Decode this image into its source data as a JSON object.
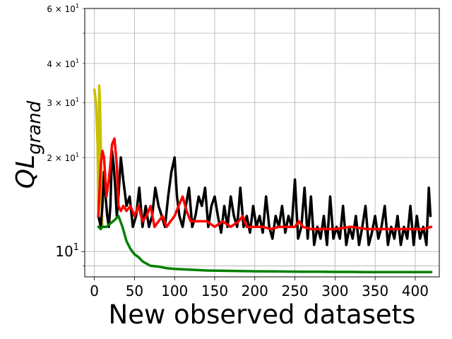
{
  "chart_data": {
    "type": "line",
    "xlabel": "New observed datasets",
    "ylabel": "QL",
    "ylabel_subscript": "grand",
    "y_scale": "log",
    "xlim": [
      -12,
      430
    ],
    "ylim": [
      8.3,
      60
    ],
    "grid": true,
    "x_ticks": [
      0,
      50,
      100,
      150,
      200,
      250,
      300,
      350,
      400
    ],
    "x_tick_labels": [
      "0",
      "50",
      "100",
      "150",
      "200",
      "250",
      "300",
      "350",
      "400"
    ],
    "y_ticks_major": [
      10
    ],
    "y_tick_major_labels": [
      "10",
      "1"
    ],
    "y_ticks_minor": [
      20,
      30,
      40,
      60
    ],
    "y_tick_minor_labels": [
      {
        "mantissa": "2",
        "base": "10",
        "exp": "1"
      },
      {
        "mantissa": "3",
        "base": "10",
        "exp": "1"
      },
      {
        "mantissa": "4",
        "base": "10",
        "exp": "1"
      },
      {
        "mantissa": "6",
        "base": "10",
        "exp": "1"
      }
    ],
    "series": [
      {
        "color": "#c8c000",
        "x": [
          0,
          2,
          4,
          5,
          6,
          7,
          8,
          9,
          10
        ],
        "y": [
          33,
          30,
          22,
          13,
          34,
          30,
          22,
          14,
          12
        ]
      },
      {
        "color": "#000000",
        "x": [
          5,
          8,
          10,
          12,
          14,
          16,
          18,
          20,
          22,
          24,
          26,
          28,
          30,
          33,
          36,
          40,
          44,
          48,
          52,
          56,
          60,
          64,
          68,
          72,
          76,
          80,
          84,
          88,
          92,
          96,
          100,
          103,
          106,
          110,
          114,
          118,
          122,
          126,
          130,
          134,
          138,
          142,
          146,
          150,
          154,
          158,
          162,
          166,
          170,
          174,
          178,
          182,
          186,
          190,
          194,
          198,
          202,
          206,
          210,
          214,
          218,
          222,
          226,
          230,
          234,
          238,
          242,
          246,
          250,
          254,
          258,
          262,
          266,
          270,
          274,
          278,
          282,
          286,
          290,
          294,
          298,
          302,
          306,
          310,
          314,
          318,
          322,
          326,
          330,
          334,
          338,
          342,
          346,
          350,
          354,
          358,
          362,
          366,
          370,
          374,
          378,
          382,
          386,
          390,
          394,
          398,
          402,
          406,
          410,
          414,
          417,
          419
        ],
        "y": [
          13,
          12,
          14,
          18,
          15,
          13,
          12,
          14,
          21,
          19,
          16,
          13,
          15,
          20,
          17,
          14,
          15,
          12,
          13,
          16,
          12,
          14,
          12,
          13,
          16,
          14,
          13,
          12,
          15,
          18,
          20,
          15,
          13,
          12,
          14,
          16,
          12,
          13,
          15,
          14,
          16,
          12,
          14,
          15,
          13,
          11.5,
          14,
          12,
          15,
          13,
          12,
          16,
          12,
          13,
          11.5,
          14,
          12,
          13,
          11.5,
          15,
          12,
          11,
          13,
          12,
          14,
          11.5,
          13,
          12,
          17,
          11,
          12,
          16,
          11,
          15,
          10.5,
          12,
          11,
          13,
          10.5,
          15,
          11,
          12,
          11,
          14,
          10.5,
          12,
          11,
          13,
          10.5,
          12,
          14,
          10.5,
          11.5,
          13,
          11,
          12,
          14,
          10.5,
          12,
          11,
          13,
          10.5,
          12,
          11,
          14,
          10.5,
          13,
          11,
          12,
          10.5,
          16,
          13
        ]
      },
      {
        "color": "#ff0000",
        "x": [
          5,
          8,
          10,
          12,
          15,
          18,
          20,
          22,
          25,
          28,
          30,
          33,
          36,
          40,
          45,
          50,
          55,
          60,
          65,
          70,
          75,
          80,
          85,
          90,
          95,
          100,
          105,
          110,
          115,
          120,
          130,
          140,
          150,
          160,
          170,
          180,
          185,
          190,
          200,
          210,
          220,
          230,
          240,
          250,
          255,
          260,
          270,
          280,
          290,
          300,
          320,
          340,
          360,
          380,
          400,
          410,
          420
        ],
        "y": [
          13,
          19,
          21,
          20,
          15,
          17,
          19,
          22,
          23,
          19,
          14,
          13.5,
          14,
          13.5,
          14,
          13,
          14,
          12.5,
          13,
          14,
          12,
          12.5,
          13,
          12,
          12.5,
          13,
          14,
          15,
          13.5,
          12.5,
          12.5,
          12.5,
          12,
          12.5,
          12,
          12.5,
          13,
          12,
          12,
          12,
          11.8,
          12,
          12,
          12,
          12.5,
          12,
          11.8,
          11.8,
          11.8,
          11.8,
          12,
          11.8,
          11.8,
          11.8,
          11.8,
          11.8,
          12
        ]
      },
      {
        "color": "#008000",
        "x": [
          5,
          8,
          10,
          15,
          20,
          25,
          30,
          35,
          40,
          45,
          50,
          55,
          60,
          70,
          80,
          90,
          100,
          120,
          140,
          160,
          180,
          200,
          220,
          240,
          260,
          280,
          300,
          320,
          340,
          360,
          380,
          400,
          420
        ],
        "y": [
          12,
          11.8,
          12,
          12,
          12.3,
          12.6,
          13,
          12,
          10.8,
          10.2,
          9.8,
          9.6,
          9.3,
          9.0,
          8.95,
          8.85,
          8.8,
          8.75,
          8.7,
          8.68,
          8.66,
          8.65,
          8.64,
          8.63,
          8.62,
          8.62,
          8.61,
          8.61,
          8.6,
          8.6,
          8.6,
          8.6,
          8.6
        ]
      }
    ]
  }
}
